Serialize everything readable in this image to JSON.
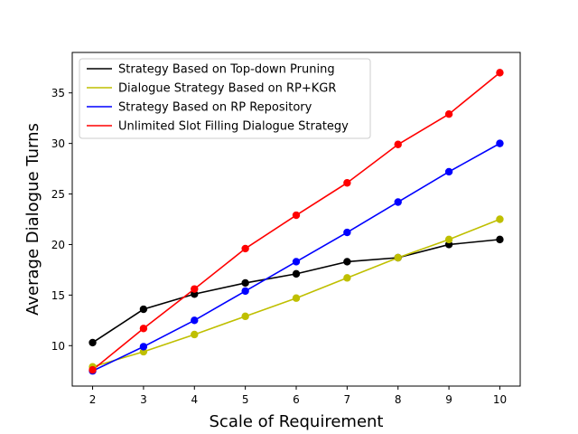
{
  "chart_data": {
    "type": "line",
    "title": "",
    "xlabel": "Scale of Requirement",
    "ylabel": "Average Dialogue Turns",
    "x": [
      2,
      3,
      4,
      5,
      6,
      7,
      8,
      9,
      10
    ],
    "xlim": [
      1.6,
      10.4
    ],
    "ylim": [
      6,
      39
    ],
    "xticks": [
      2,
      3,
      4,
      5,
      6,
      7,
      8,
      9,
      10
    ],
    "yticks": [
      10,
      15,
      20,
      25,
      30,
      35
    ],
    "grid": false,
    "legend_position": "top-left",
    "series": [
      {
        "name": "Strategy Based on Top-down Pruning",
        "color": "#000000",
        "values": [
          10.3,
          13.6,
          15.1,
          16.2,
          17.1,
          18.3,
          18.7,
          20.0,
          20.5
        ]
      },
      {
        "name": "Dialogue Strategy Based on RP+KGR",
        "color": "#bfbf00",
        "values": [
          7.9,
          9.4,
          11.1,
          12.9,
          14.7,
          16.7,
          18.7,
          20.5,
          22.5
        ]
      },
      {
        "name": "Strategy Based on RP Repository",
        "color": "#0000ff",
        "values": [
          7.5,
          9.9,
          12.5,
          15.4,
          18.3,
          21.2,
          24.2,
          27.2,
          30.0
        ]
      },
      {
        "name": "Unlimited Slot Filling Dialogue Strategy",
        "color": "#ff0000",
        "values": [
          7.6,
          11.7,
          15.6,
          19.6,
          22.9,
          26.1,
          29.9,
          32.9,
          37.0
        ]
      }
    ]
  }
}
